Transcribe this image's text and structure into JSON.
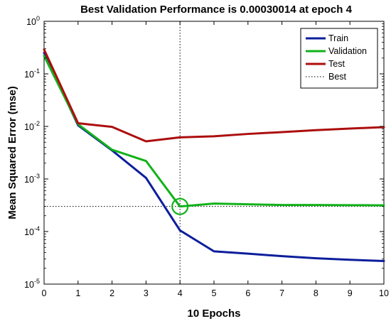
{
  "chart_data": {
    "type": "line",
    "title": "Best Validation Performance is 0.00030014 at epoch 4",
    "xlabel": "10 Epochs",
    "ylabel": "Mean Squared Error  (mse)",
    "xlim": [
      0,
      10
    ],
    "ylim": [
      1e-05,
      1
    ],
    "yscale": "log",
    "x_ticks": [
      {
        "value": 0,
        "label": "0"
      },
      {
        "value": 1,
        "label": "1"
      },
      {
        "value": 2,
        "label": "2"
      },
      {
        "value": 3,
        "label": "3"
      },
      {
        "value": 4,
        "label": "4"
      },
      {
        "value": 5,
        "label": "5"
      },
      {
        "value": 6,
        "label": "6"
      },
      {
        "value": 7,
        "label": "7"
      },
      {
        "value": 8,
        "label": "8"
      },
      {
        "value": 9,
        "label": "9"
      },
      {
        "value": 10,
        "label": "10"
      }
    ],
    "y_ticks": [
      {
        "value": 1,
        "base": "10",
        "exp": "0"
      },
      {
        "value": 0.1,
        "base": "10",
        "exp": "-1"
      },
      {
        "value": 0.01,
        "base": "10",
        "exp": "-2"
      },
      {
        "value": 0.001,
        "base": "10",
        "exp": "-3"
      },
      {
        "value": 0.0001,
        "base": "10",
        "exp": "-4"
      },
      {
        "value": 1e-05,
        "base": "10",
        "exp": "-5"
      }
    ],
    "x": [
      0,
      1,
      2,
      3,
      4,
      5,
      6,
      7,
      8,
      9,
      10
    ],
    "series": [
      {
        "name": "Train",
        "color": "#0c1e9c",
        "values": [
          0.25,
          0.0105,
          0.0035,
          0.00105,
          0.000105,
          4.2e-05,
          3.8e-05,
          3.4e-05,
          3.1e-05,
          2.9e-05,
          2.75e-05
        ]
      },
      {
        "name": "Validation",
        "color": "#12b21a",
        "values": [
          0.22,
          0.011,
          0.0036,
          0.0022,
          0.00030014,
          0.00034,
          0.00033,
          0.00032,
          0.00032,
          0.000318,
          0.000315
        ]
      },
      {
        "name": "Test",
        "color": "#ac0e0e",
        "values": [
          0.29,
          0.0115,
          0.0098,
          0.0052,
          0.0062,
          0.0065,
          0.0072,
          0.0078,
          0.0085,
          0.0091,
          0.0097
        ]
      }
    ],
    "best": {
      "name": "Best",
      "epoch": 4,
      "value": 0.00030014,
      "color": "#000000"
    },
    "legend_position": "top-right",
    "grid": false
  }
}
